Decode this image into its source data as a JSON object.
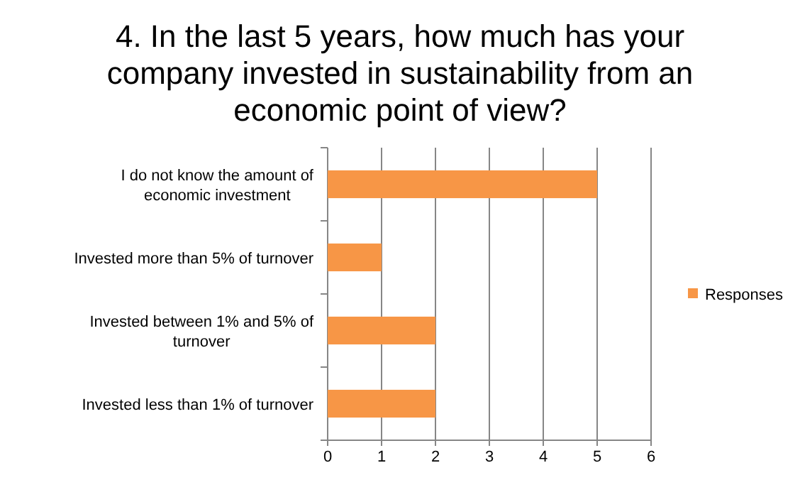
{
  "chart_data": {
    "type": "bar",
    "orientation": "horizontal",
    "title": "4. In the last 5 years, how much has your company invested in sustainability from an economic point of view?",
    "categories": [
      "I do not know the amount of economic investment",
      "Invested more than 5% of turnover",
      "Invested between 1% and 5% of turnover",
      "Invested less than 1% of turnover"
    ],
    "series": [
      {
        "name": "Responses",
        "color": "#f79646",
        "values": [
          5,
          1,
          2,
          2
        ]
      }
    ],
    "xlim": [
      0,
      6
    ],
    "xticks": [
      0,
      1,
      2,
      3,
      4,
      5,
      6
    ],
    "grid": "x",
    "legend": "right"
  }
}
